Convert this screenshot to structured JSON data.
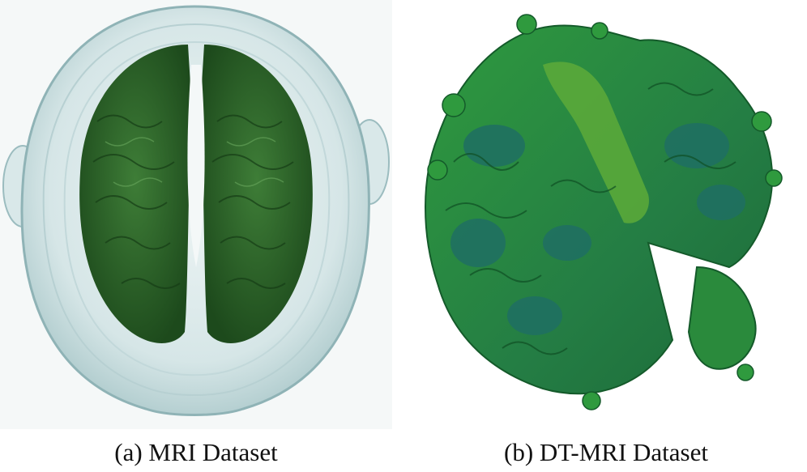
{
  "figure": {
    "panels": [
      {
        "caption": "(a)  MRI Dataset",
        "image_description": "Top-down translucent volume rendering of a head with green brain tissue inside",
        "colors": {
          "shell": "#cfe3e4",
          "shell_edge": "#8fb3b6",
          "tissue": "#2f6a2c",
          "tissue_dark": "#1d4a1c",
          "background": "#f5f8f8"
        }
      },
      {
        "caption": "(b)  DT-MRI Dataset",
        "image_description": "Opaque green surface rendering of a folded brain structure with a missing wedge at the bottom right",
        "colors": {
          "surface": "#2b8a3a",
          "surface_teal": "#1f6f63",
          "surface_light": "#4fa03a",
          "background": "#ffffff"
        }
      }
    ]
  }
}
